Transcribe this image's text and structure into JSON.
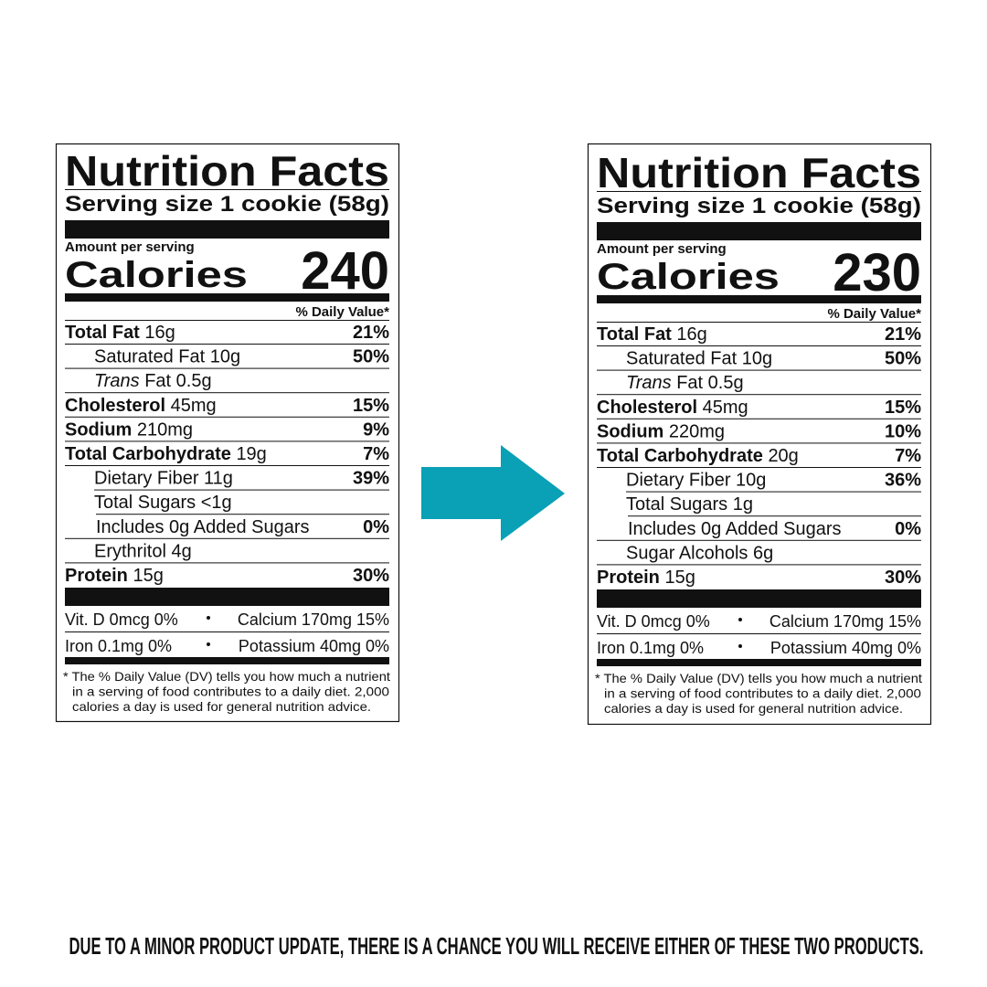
{
  "labels": [
    {
      "title": "Nutrition Facts",
      "serving": "Serving size 1 cookie (58g)",
      "amount_per_serving": "Amount per serving",
      "calories_label": "Calories",
      "calories": "240",
      "dv_header": "% Daily Value*",
      "rows": [
        {
          "name": "Total Fat",
          "amount": "16g",
          "dv": "21%"
        },
        {
          "name": "Saturated Fat",
          "amount": "10g",
          "dv": "50%"
        },
        {
          "name_italic": "Trans",
          "name": "Fat",
          "amount": "0.5g"
        },
        {
          "name": "Cholesterol",
          "amount": "45mg",
          "dv": "15%"
        },
        {
          "name": "Sodium",
          "amount": "210mg",
          "dv": "9%"
        },
        {
          "name": "Total Carbohydrate",
          "amount": "19g",
          "dv": "7%"
        },
        {
          "name": "Dietary Fiber",
          "amount": "11g",
          "dv": "39%"
        },
        {
          "name": "Total Sugars",
          "amount": "<1g"
        },
        {
          "name": "Includes 0g Added Sugars",
          "dv": "0%"
        },
        {
          "name": "Erythritol",
          "amount": "4g"
        },
        {
          "name": "Protein",
          "amount": "15g",
          "dv": "30%"
        }
      ],
      "vitamins": [
        [
          "Vit. D 0mcg 0%",
          "Calcium 170mg 15%"
        ],
        [
          "Iron 0.1mg 0%",
          "Potassium 40mg 0%"
        ]
      ],
      "footnote": [
        "* The % Daily Value (DV) tells you how much a nutrient",
        "in a serving of food contributes to a daily diet. 2,000",
        "calories a day is used for general nutrition advice."
      ]
    },
    {
      "title": "Nutrition Facts",
      "serving": "Serving size 1 cookie (58g)",
      "amount_per_serving": "Amount per serving",
      "calories_label": "Calories",
      "calories": "230",
      "dv_header": "% Daily Value*",
      "rows": [
        {
          "name": "Total Fat",
          "amount": "16g",
          "dv": "21%"
        },
        {
          "name": "Saturated Fat",
          "amount": "10g",
          "dv": "50%"
        },
        {
          "name_italic": "Trans",
          "name": "Fat",
          "amount": "0.5g"
        },
        {
          "name": "Cholesterol",
          "amount": "45mg",
          "dv": "15%"
        },
        {
          "name": "Sodium",
          "amount": "220mg",
          "dv": "10%"
        },
        {
          "name": "Total Carbohydrate",
          "amount": "20g",
          "dv": "7%"
        },
        {
          "name": "Dietary Fiber",
          "amount": "10g",
          "dv": "36%"
        },
        {
          "name": "Total Sugars",
          "amount": "1g"
        },
        {
          "name": "Includes 0g Added Sugars",
          "dv": "0%"
        },
        {
          "name": "Sugar Alcohols",
          "amount": "6g"
        },
        {
          "name": "Protein",
          "amount": "15g",
          "dv": "30%"
        }
      ],
      "vitamins": [
        [
          "Vit. D 0mcg 0%",
          "Calcium 170mg 15%"
        ],
        [
          "Iron 0.1mg 0%",
          "Potassium 40mg 0%"
        ]
      ],
      "footnote": [
        "* The % Daily Value (DV) tells you how much a nutrient",
        "in a serving of food contributes to a daily diet. 2,000",
        "calories a day is used for general nutrition advice."
      ]
    }
  ],
  "notice": "DUE TO A MINOR PRODUCT UPDATE, THERE IS A CHANCE YOU WILL RECEIVE EITHER OF THESE TWO PRODUCTS."
}
